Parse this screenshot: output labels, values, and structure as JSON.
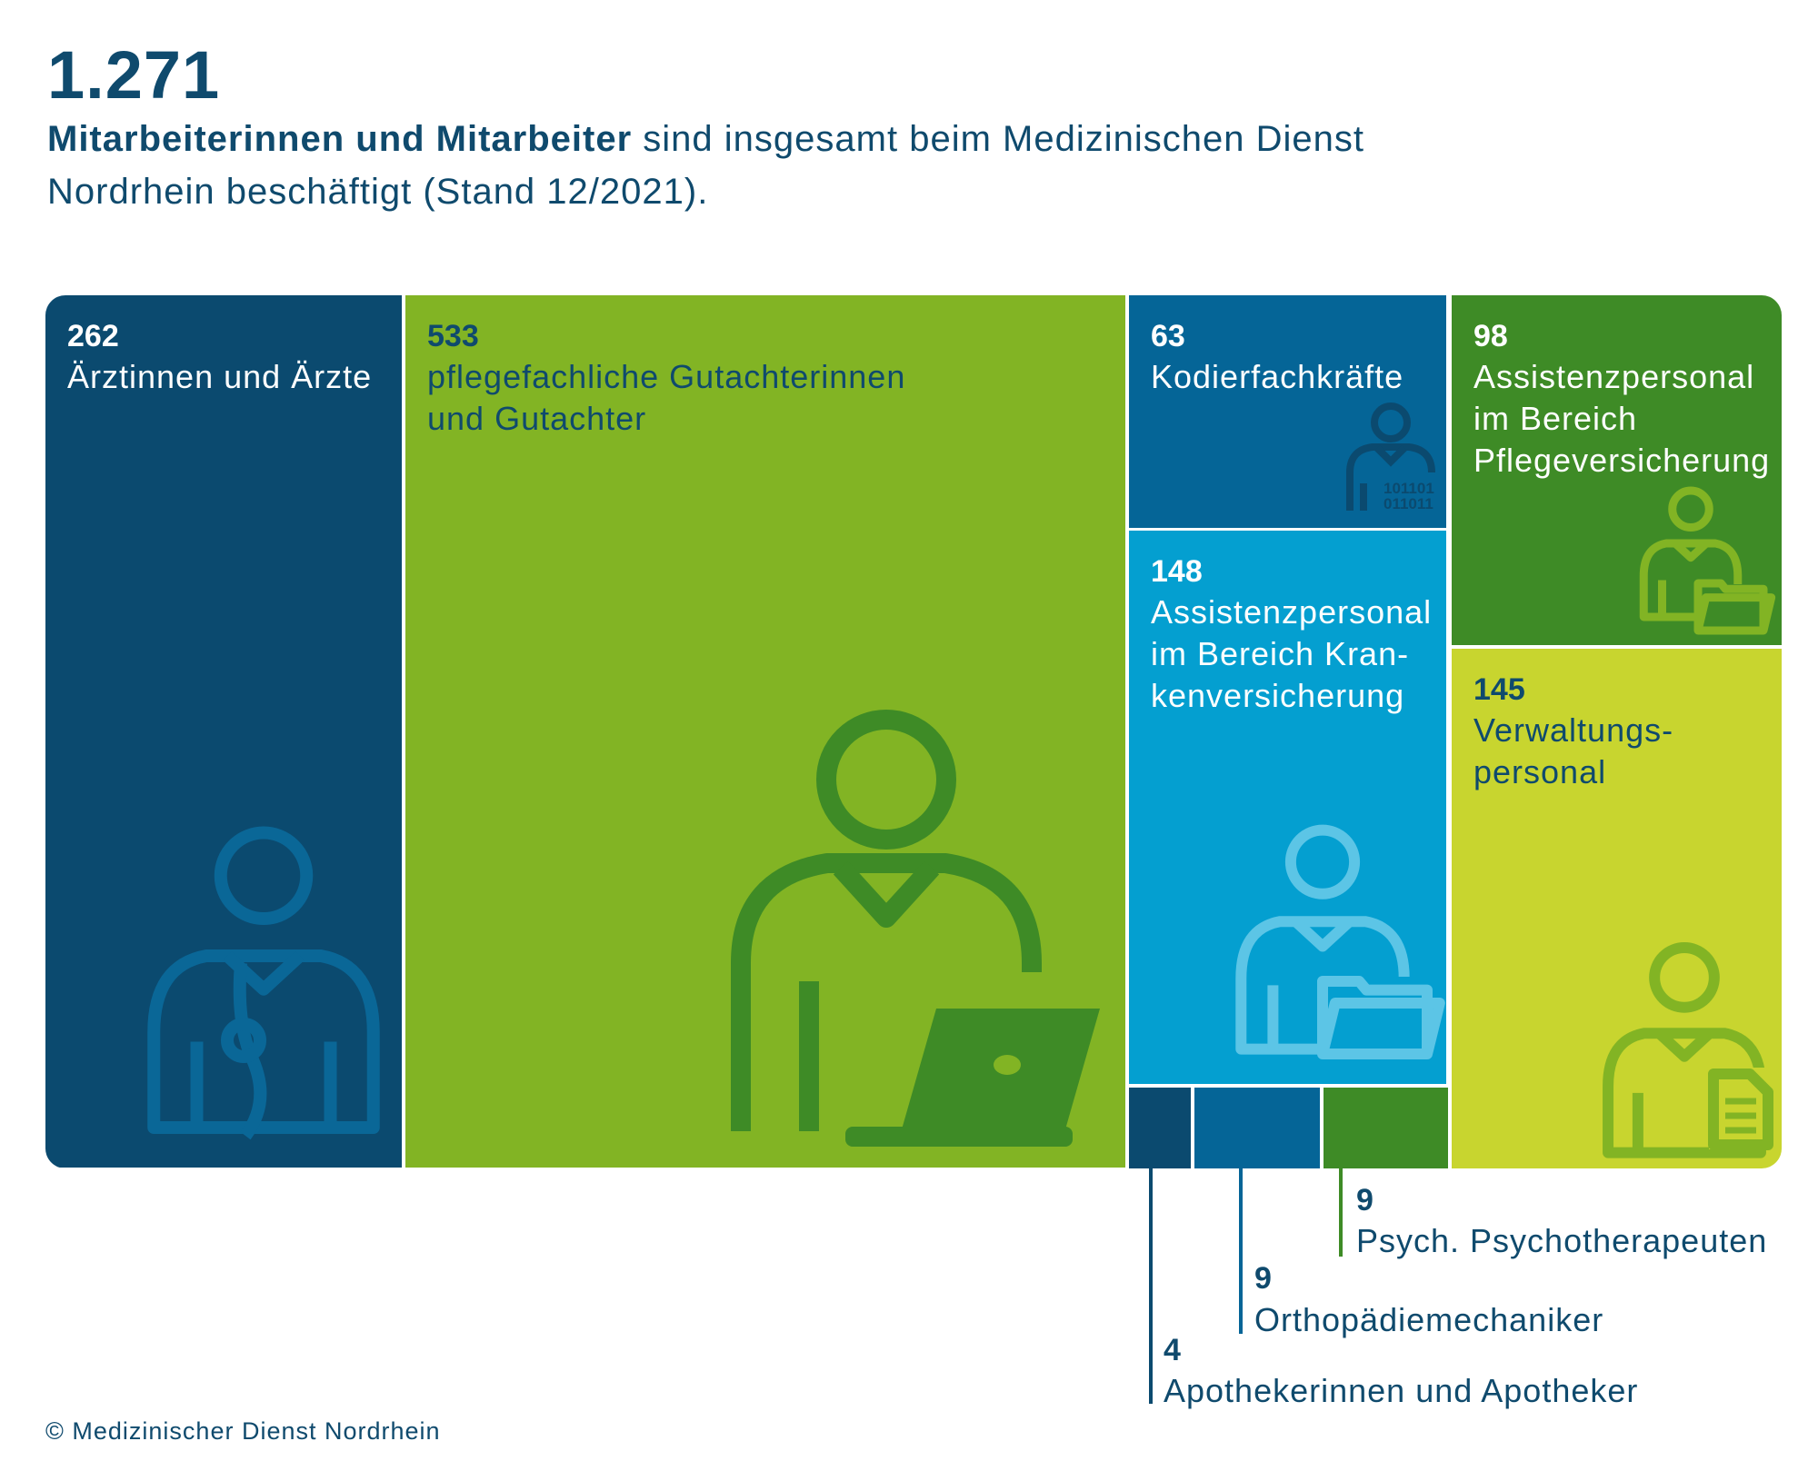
{
  "header": {
    "total": "1.271",
    "subtitle_bold": "Mitarbeiterinnen und Mitarbeiter",
    "subtitle_rest": " sind insgesamt beim Medizinischen Dienst Nordrhein beschäftigt (Stand 12/2021)."
  },
  "chart_data": {
    "type": "treemap",
    "total": 1271,
    "cells": [
      {
        "label": "Ärztinnen und Ärzte",
        "value": 262,
        "color": "#0b4a6f"
      },
      {
        "label": "pflegefachliche Gutachterinnen und Gutachter",
        "value": 533,
        "color": "#82b424"
      },
      {
        "label": "Kodierfachkräfte",
        "value": 63,
        "color": "#056597"
      },
      {
        "label": "Assistenzpersonal im Bereich Pflegeversicherung",
        "value": 98,
        "color": "#3e8b26"
      },
      {
        "label": "Assistenzpersonal im Bereich Krankenversicherung",
        "value": 148,
        "color": "#049fd0"
      },
      {
        "label": "Verwaltungspersonal",
        "value": 145,
        "color": "#c8d52f"
      },
      {
        "label": "Apothekerinnen und Apotheker",
        "value": 4,
        "color": "#0b4a6f"
      },
      {
        "label": "Orthopädiemechaniker",
        "value": 9,
        "color": "#056597"
      },
      {
        "label": "Psych. Psychotherapeuten",
        "value": 9,
        "color": "#3e8b26"
      }
    ],
    "label_lines": [
      [
        "Ärztinnen und Ärzte"
      ],
      [
        "pflegefachliche Gutachterinnen",
        "und Gutachter"
      ],
      [
        "Kodierfachkräfte"
      ],
      [
        "Assistenzpersonal",
        "im Bereich",
        "Pflegeversicherung"
      ],
      [
        "Assistenzpersonal",
        "im Bereich Kran-",
        "kenversicherung"
      ],
      [
        "Verwaltungs-",
        "personal"
      ],
      [
        "Apothekerinnen und Apotheker"
      ],
      [
        "Orthopädiemechaniker"
      ],
      [
        "Psych. Psychotherapeuten"
      ]
    ],
    "icons": [
      "doctor-icon",
      "person-laptop-icon",
      "person-binary-icon",
      "person-folder-icon",
      "person-folder-icon",
      "person-document-icon"
    ],
    "binary_text": [
      "101101",
      "011011"
    ]
  },
  "footer": {
    "copyright": "© Medizinischer Dienst Nordrhein"
  }
}
